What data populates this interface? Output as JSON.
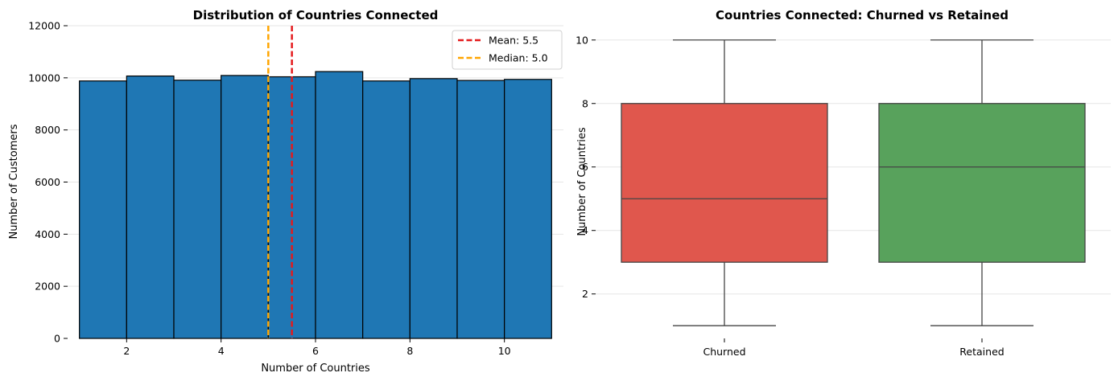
{
  "chart_data": [
    {
      "type": "bar",
      "subtype": "histogram",
      "title": "Distribution of Countries Connected",
      "xlabel": "Number of Countries",
      "ylabel": "Number of Customers",
      "xlim": [
        0.75,
        11.25
      ],
      "ylim": [
        0,
        12000
      ],
      "xticks": [
        2,
        4,
        6,
        8,
        10
      ],
      "yticks": [
        0,
        2000,
        4000,
        6000,
        8000,
        10000,
        12000
      ],
      "bins": [
        {
          "start": 1,
          "end": 2,
          "value": 9880
        },
        {
          "start": 2,
          "end": 3,
          "value": 10070
        },
        {
          "start": 3,
          "end": 4,
          "value": 9910
        },
        {
          "start": 4,
          "end": 5,
          "value": 10090
        },
        {
          "start": 5,
          "end": 6,
          "value": 10040
        },
        {
          "start": 6,
          "end": 7,
          "value": 10240
        },
        {
          "start": 7,
          "end": 8,
          "value": 9880
        },
        {
          "start": 8,
          "end": 9,
          "value": 9970
        },
        {
          "start": 9,
          "end": 10,
          "value": 9900
        },
        {
          "start": 10,
          "end": 11,
          "value": 9940
        }
      ],
      "bar_color": "#1f77b4",
      "reference_lines": [
        {
          "label": "Mean: 5.5",
          "x": 5.5,
          "color": "#e41a1c"
        },
        {
          "label": "Median: 5.0",
          "x": 5.0,
          "color": "#ffa500"
        }
      ],
      "legend": {
        "position": "top-right",
        "entries": [
          "Mean: 5.5",
          "Median: 5.0"
        ]
      },
      "grid": "horizontal"
    },
    {
      "type": "box",
      "title": "Countries Connected: Churned vs Retained",
      "xlabel": "",
      "ylabel": "Number of Countries",
      "ylim": [
        0.6,
        10.45
      ],
      "yticks": [
        2,
        4,
        6,
        8,
        10
      ],
      "categories": [
        "Churned",
        "Retained"
      ],
      "boxes": [
        {
          "name": "Churned",
          "min": 1,
          "q1": 3,
          "median": 5,
          "q3": 8,
          "max": 10,
          "color": "#e0574d"
        },
        {
          "name": "Retained",
          "min": 1,
          "q1": 3,
          "median": 6,
          "q3": 8,
          "max": 10,
          "color": "#58a25c"
        }
      ],
      "grid": "horizontal"
    }
  ]
}
